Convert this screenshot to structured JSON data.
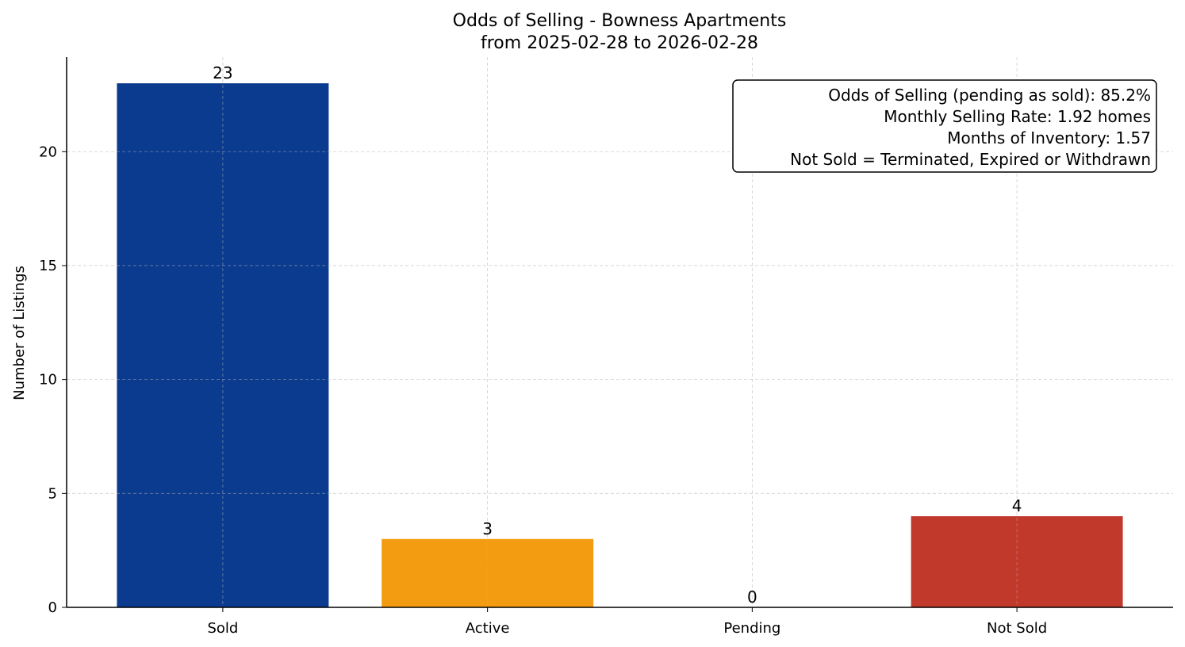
{
  "chart_data": {
    "type": "bar",
    "title": "Odds of Selling - Bowness Apartments",
    "subtitle": "from 2025-02-28 to 2026-02-28",
    "xlabel": "",
    "ylabel": "Number of Listings",
    "categories": [
      "Sold",
      "Active",
      "Pending",
      "Not Sold"
    ],
    "values": [
      23,
      3,
      0,
      4
    ],
    "data_labels": [
      "23",
      "3",
      "0",
      "4"
    ],
    "colors": [
      "#0b3b8f",
      "#f39c12",
      "#2e86c1",
      "#c0392b"
    ],
    "ylim": [
      0,
      24.15
    ],
    "yticks": [
      0,
      5,
      10,
      15,
      20
    ],
    "ytick_labels": [
      "0",
      "5",
      "10",
      "15",
      "20"
    ],
    "grid": true,
    "annotation_box": {
      "placement": "top-right",
      "lines": [
        "Odds of Selling (pending as sold): 85.2%",
        "Monthly Selling Rate: 1.92 homes",
        "Months of Inventory: 1.57",
        "Not Sold = Terminated, Expired or Withdrawn"
      ]
    }
  }
}
